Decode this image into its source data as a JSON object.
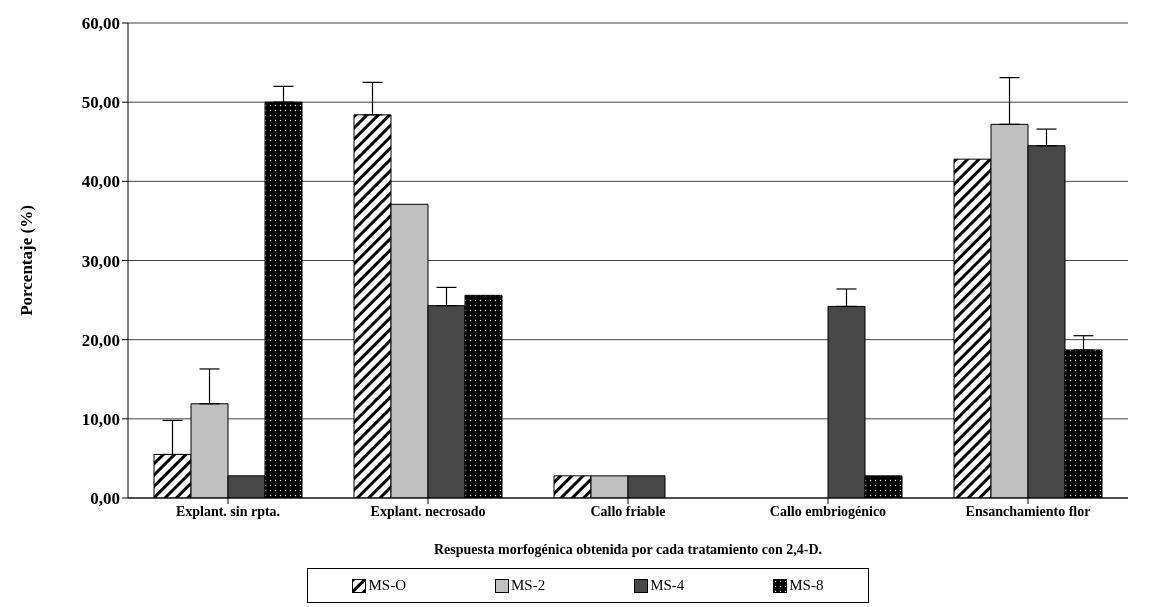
{
  "chart_data": {
    "type": "bar",
    "xlabel": "Respuesta morfogénica obtenida por cada tratamiento con 2,4-D.",
    "ylabel": "Porcentaje (%)",
    "categories": [
      "Explant. sin rpta.",
      "Explant. necrosado",
      "Callo friable",
      "Callo embriogénico",
      "Ensanchamiento flor"
    ],
    "series": [
      {
        "name": "MS-O",
        "color": "#000000",
        "values": [
          5.5,
          48.4,
          2.8,
          0,
          42.8
        ],
        "errors": [
          [
            5.5,
            9.8
          ],
          [
            48.4,
            52.5
          ],
          null,
          null,
          null
        ]
      },
      {
        "name": "MS-2",
        "color": "#c0c0c0",
        "values": [
          11.9,
          37.1,
          2.8,
          0,
          47.2
        ],
        "errors": [
          [
            11.9,
            16.3
          ],
          null,
          null,
          null,
          [
            47.2,
            53.1
          ]
        ]
      },
      {
        "name": "MS-4",
        "color": "#484848",
        "values": [
          2.8,
          24.3,
          2.8,
          24.2,
          44.5
        ],
        "errors": [
          null,
          [
            24.3,
            26.6
          ],
          null,
          [
            24.2,
            26.4
          ],
          [
            44.5,
            46.6
          ]
        ]
      },
      {
        "name": "MS-8",
        "color": "#000000",
        "values": [
          50,
          25.6,
          0,
          2.8,
          18.7
        ],
        "errors": [
          [
            50,
            52
          ],
          null,
          null,
          null,
          [
            18.7,
            20.5
          ]
        ]
      }
    ],
    "ylim": [
      0,
      60
    ],
    "yticks": [
      {
        "value": 0,
        "label": "0,00"
      },
      {
        "value": 10,
        "label": "10,00"
      },
      {
        "value": 20,
        "label": "20,00"
      },
      {
        "value": 30,
        "label": "30,00"
      },
      {
        "value": 40,
        "label": "40,00"
      },
      {
        "value": 50,
        "label": "50,00"
      },
      {
        "value": 60,
        "label": "60,00"
      }
    ],
    "grid": "y",
    "legend": "bottom"
  }
}
